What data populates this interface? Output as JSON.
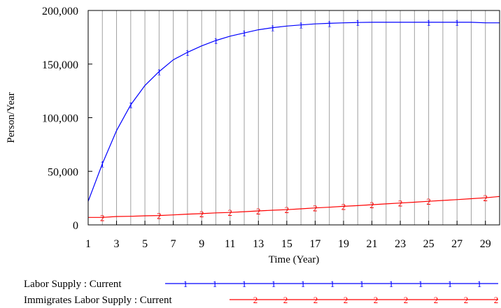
{
  "chart_data": {
    "type": "line",
    "xlabel": "Time (Year)",
    "ylabel": "Person/Year",
    "xlim": [
      1,
      30
    ],
    "ylim": [
      0,
      200000
    ],
    "x_ticks": [
      1,
      3,
      5,
      7,
      9,
      11,
      13,
      15,
      17,
      19,
      21,
      23,
      25,
      27,
      29
    ],
    "y_ticks": [
      0,
      50000,
      100000,
      150000,
      200000
    ],
    "y_tick_labels": [
      "0",
      "50,000",
      "100,000",
      "150,000",
      "200,000"
    ],
    "grid": "vertical",
    "legend_position": "bottom",
    "x": [
      1,
      2,
      3,
      4,
      5,
      6,
      7,
      8,
      9,
      10,
      11,
      12,
      13,
      14,
      15,
      16,
      17,
      18,
      19,
      20,
      21,
      22,
      23,
      24,
      25,
      26,
      27,
      28,
      29,
      30
    ],
    "series": [
      {
        "name": "Labor Supply : Current",
        "marker": "1",
        "color": "#0000ff",
        "values": [
          22000,
          57000,
          88000,
          112000,
          130000,
          143000,
          154000,
          161000,
          167000,
          172000,
          176000,
          179000,
          182000,
          184000,
          185500,
          186500,
          187500,
          188000,
          188500,
          188800,
          189000,
          189000,
          189000,
          189000,
          189000,
          189000,
          189000,
          189000,
          188500,
          188500
        ],
        "marker_x": [
          2,
          4,
          6,
          8,
          10,
          12,
          14,
          16,
          18,
          20,
          25,
          27
        ]
      },
      {
        "name": "Immigrates Labor Supply : Current",
        "marker": "2",
        "color": "#ff0000",
        "values": [
          7000,
          7000,
          7800,
          8000,
          8500,
          8700,
          9300,
          10000,
          10500,
          11200,
          11600,
          12300,
          13000,
          13700,
          14200,
          15000,
          15800,
          16500,
          17300,
          18000,
          18800,
          19600,
          20400,
          21200,
          22000,
          22800,
          23600,
          24400,
          25300,
          26500
        ],
        "marker_x": [
          2,
          6,
          9,
          11,
          13,
          15,
          17,
          19,
          21,
          23,
          25,
          29
        ]
      }
    ],
    "legend_marker_count": 12
  }
}
